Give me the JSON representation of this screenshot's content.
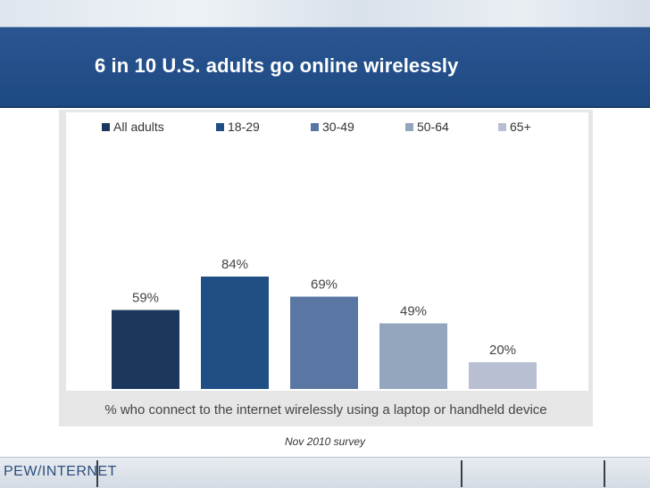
{
  "slide": {
    "title": "6 in 10 U.S. adults go online wirelessly",
    "survey_note": "Nov 2010 survey",
    "footer_logo": "PEW/INTERNET"
  },
  "colors": {
    "title_band": "#1e4a84",
    "all_adults": "#1b375e",
    "age_18_29": "#1f4f85",
    "age_30_49": "#5a76a3",
    "age_50_64": "#93a6bd",
    "age_65_plus": "#b8bfd2"
  },
  "chart_data": {
    "type": "bar",
    "title": "",
    "categories": [
      "All adults",
      "18-29",
      "30-49",
      "50-64",
      "65+"
    ],
    "values": [
      59,
      84,
      69,
      49,
      20
    ],
    "value_labels": [
      "59%",
      "84%",
      "69%",
      "49%",
      "20%"
    ],
    "series": [
      {
        "name": "All adults",
        "value": 59,
        "color": "#1b375e"
      },
      {
        "name": "18-29",
        "value": 84,
        "color": "#1f4f85"
      },
      {
        "name": "30-49",
        "value": 69,
        "color": "#5a76a3"
      },
      {
        "name": "50-64",
        "value": 49,
        "color": "#93a6bd"
      },
      {
        "name": "65+",
        "value": 20,
        "color": "#b8bfd2"
      }
    ],
    "xlabel": "% who connect to the internet wirelessly using a laptop or handheld device",
    "ylabel": "",
    "ylim": [
      0,
      100
    ],
    "grid": false,
    "legend_position": "top"
  }
}
